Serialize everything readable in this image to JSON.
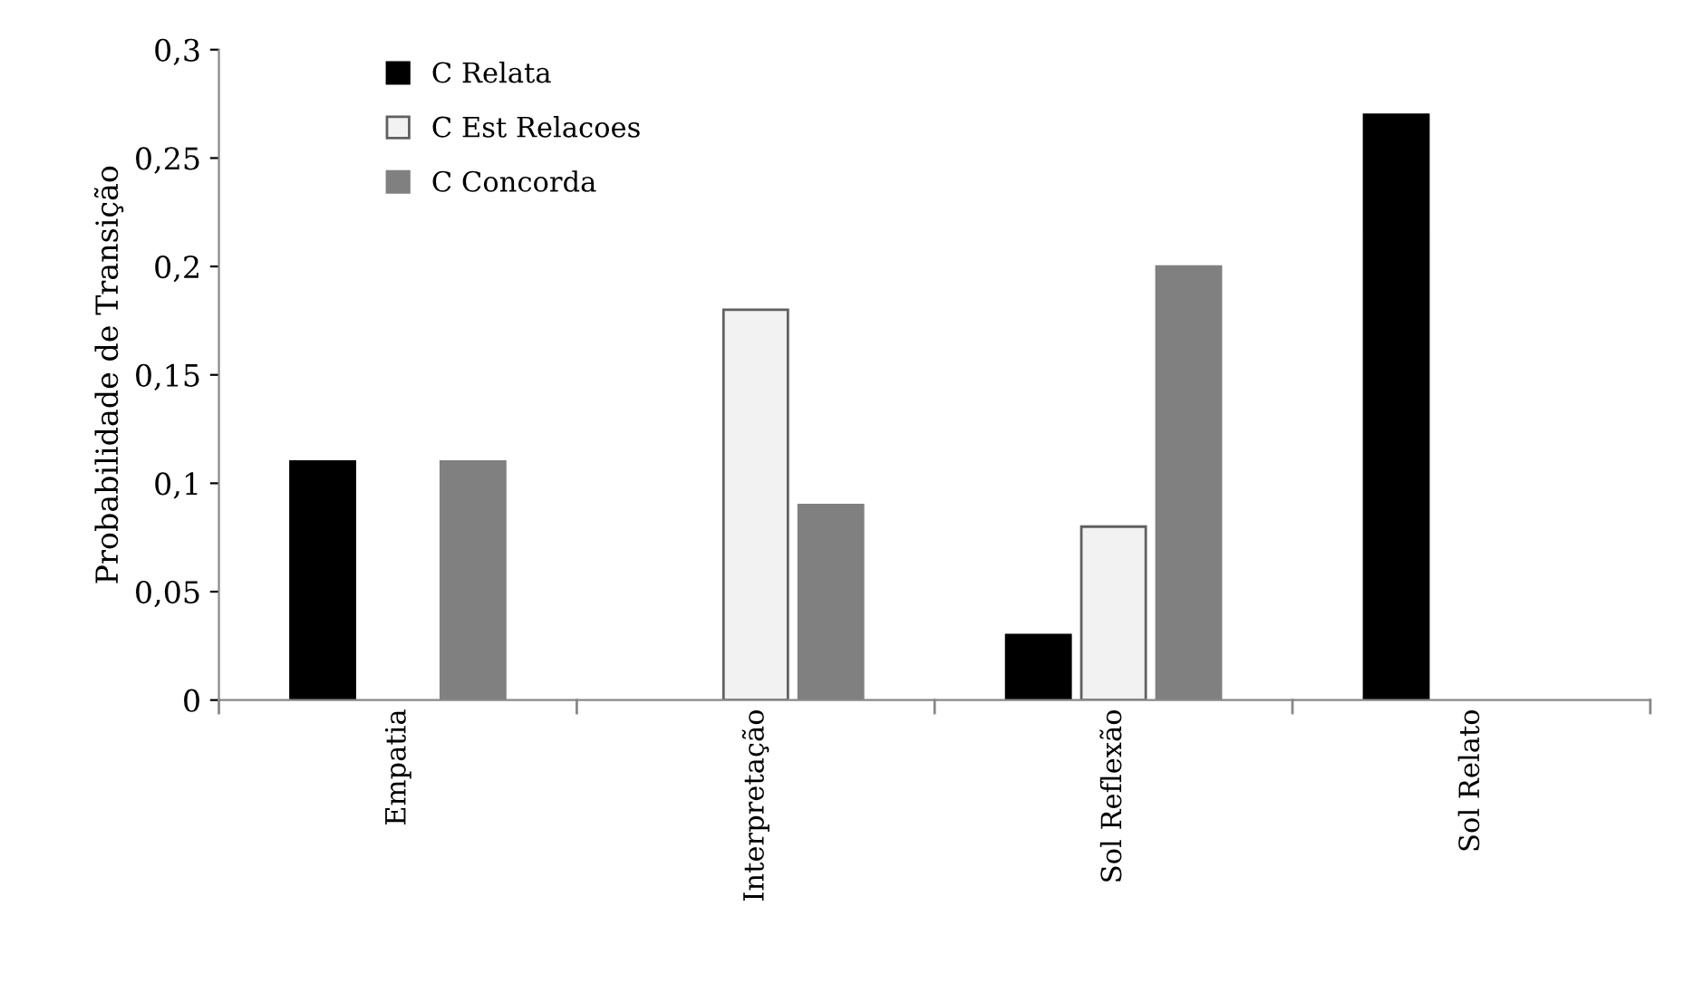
{
  "chart_data": {
    "type": "bar",
    "ylabel": "Probabilidade de Transição",
    "categories": [
      "Empatia",
      "Interpretação",
      "Sol Reflexão",
      "Sol Relato"
    ],
    "series": [
      {
        "name": "C Relata",
        "color": "#000000",
        "values": [
          0.11,
          0,
          0.03,
          0.27
        ]
      },
      {
        "name": "C Est Relacoes",
        "color": "#f2f2f2",
        "values": [
          0,
          0.18,
          0.08,
          0
        ]
      },
      {
        "name": "C Concorda",
        "color": "#808080",
        "values": [
          0.11,
          0.09,
          0.2,
          0
        ]
      }
    ],
    "ylim": [
      0,
      0.3
    ],
    "yticks": [
      0,
      {
        "value": 0.05,
        "label": "0,05"
      },
      {
        "value": 0.1,
        "label": "0,1"
      },
      {
        "value": 0.15,
        "label": "0,15"
      },
      {
        "value": 0.2,
        "label": "0,2"
      },
      {
        "value": 0.25,
        "label": "0,25"
      },
      {
        "value": 0.3,
        "label": "0,3"
      }
    ],
    "grid": false,
    "legend": "top left"
  }
}
